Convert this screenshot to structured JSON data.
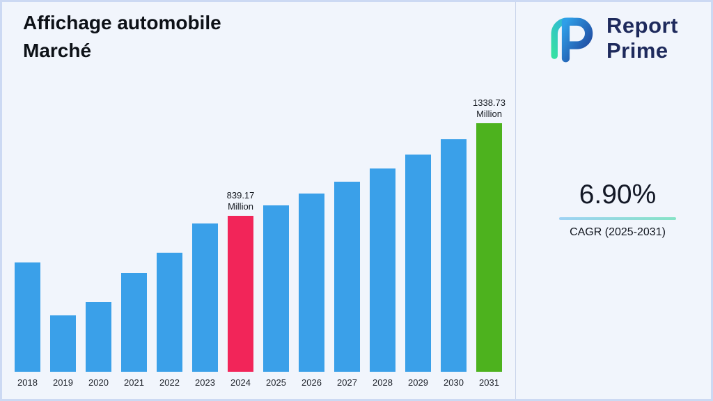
{
  "title": {
    "line1": "Affichage automobile",
    "line2": "Marché"
  },
  "logo": {
    "line1": "Report",
    "line2": "Prime"
  },
  "stats": {
    "cagr_value": "6.90%",
    "cagr_label": "CAGR (2025-2031)"
  },
  "chart_data": {
    "type": "bar",
    "title": "Affichage automobile Marché",
    "categories": [
      "2018",
      "2019",
      "2020",
      "2021",
      "2022",
      "2023",
      "2024",
      "2025",
      "2026",
      "2027",
      "2028",
      "2029",
      "2030",
      "2031"
    ],
    "values": [
      590,
      305,
      376,
      532,
      643,
      800,
      839.17,
      897,
      959,
      1025,
      1096,
      1171,
      1252,
      1338.73
    ],
    "unit": "Million",
    "ylim": [
      0,
      1400
    ],
    "xlabel": "",
    "ylabel": "",
    "grid": false,
    "legend": false,
    "default_bar_color": "#3aa0e9",
    "annotated_bars": [
      {
        "category": "2024",
        "label": "839.17\nMillion",
        "color": "#f22559"
      },
      {
        "category": "2031",
        "label": "1338.73\nMillion",
        "color": "#4db21e"
      }
    ]
  }
}
